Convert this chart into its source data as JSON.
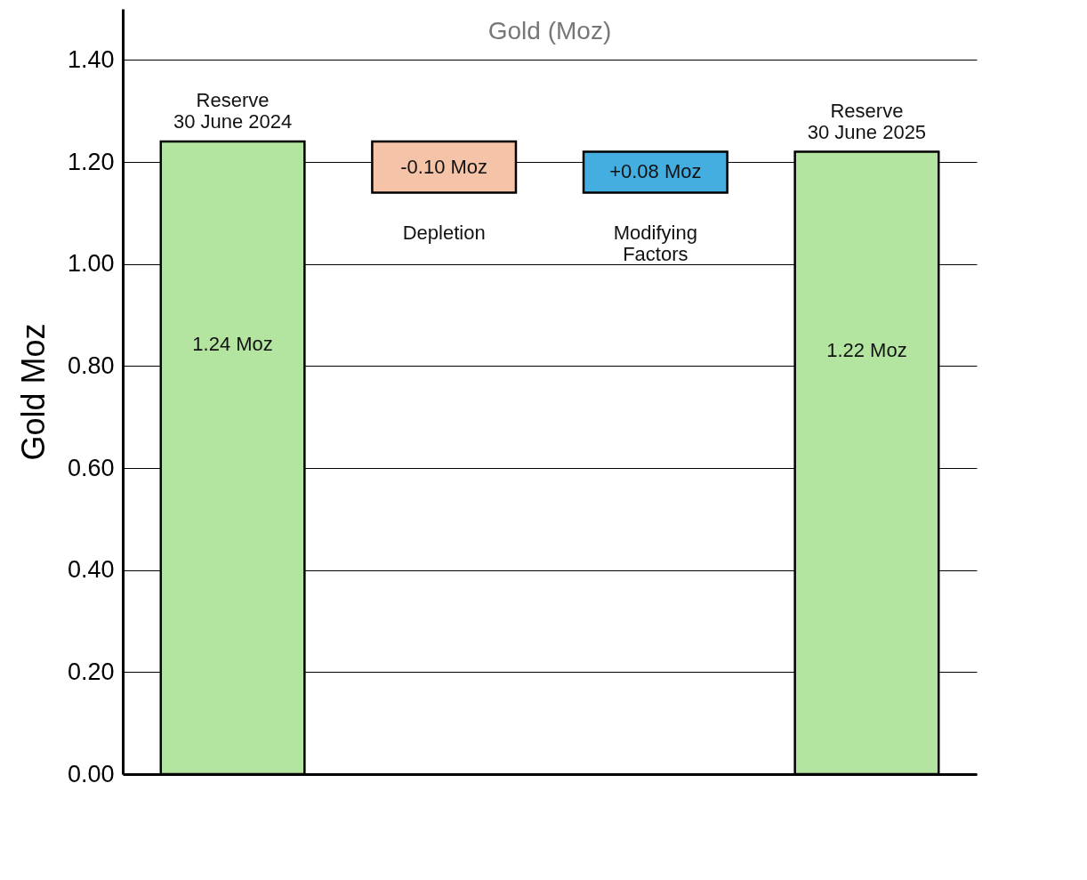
{
  "chart_data": {
    "type": "bar",
    "title": "Gold (Moz)",
    "ylabel": "Gold Moz",
    "categories": [
      "Reserve\n30 June 2024",
      "Depletion",
      "Modifying\nFactors",
      "Reserve\n30 June 2025"
    ],
    "values": [
      1.24,
      -0.1,
      0.08,
      1.22
    ],
    "base": [
      null,
      1.24,
      1.14,
      null
    ],
    "colors": [
      "#b3e5a1",
      "#f5c3a8",
      "#45aee0",
      "#b3e5a1"
    ],
    "value_labels": [
      "1.24 Moz",
      "-0.10 Moz",
      "+0.08 Moz",
      "1.22 Moz"
    ],
    "ylim": [
      0,
      1.5
    ],
    "yticks": [
      {
        "value": 0,
        "label": "0.00"
      },
      {
        "value": 0.2,
        "label": "0.20"
      },
      {
        "value": 0.4,
        "label": "0.40"
      },
      {
        "value": 0.6,
        "label": "0.60"
      },
      {
        "value": 0.8,
        "label": "0.80"
      },
      {
        "value": 1.0,
        "label": "1.00"
      },
      {
        "value": 1.2,
        "label": "1.20"
      },
      {
        "value": 1.4,
        "label": "1.40"
      }
    ],
    "grid": "y",
    "legend": false
  }
}
